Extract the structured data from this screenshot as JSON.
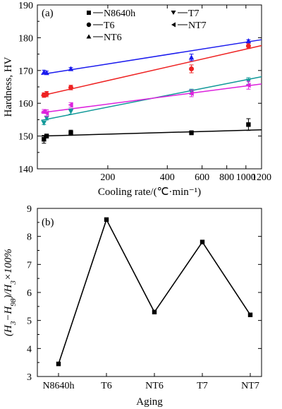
{
  "chart_data": [
    {
      "panel": "(a)",
      "type": "scatter",
      "xlabel": "Cooling rate/(℃·min⁻¹)",
      "ylabel": "Hardness, HV",
      "xscale": "log",
      "xlim": [
        88,
        1200
      ],
      "ylim": [
        140,
        190
      ],
      "xticks": [
        200,
        400,
        600,
        800,
        1000,
        1200
      ],
      "xtick_labels": [
        "200",
        "400",
        "600",
        "800",
        "1000",
        "1200"
      ],
      "yticks": [
        140,
        150,
        160,
        170,
        180,
        190
      ],
      "ytick_labels": [
        "140",
        "150",
        "160",
        "170",
        "180",
        "190"
      ],
      "legend": "top",
      "series": [
        {
          "name": "N8640h",
          "marker": "square",
          "color": "#000000",
          "x": [
            95,
            98,
            130,
            530,
            1030
          ],
          "y": [
            149.0,
            150.0,
            151.0,
            151.0,
            153.5
          ],
          "err": [
            1.2,
            0.6,
            0.8,
            0.6,
            1.8
          ],
          "fit": [
            150.0,
            151.9
          ]
        },
        {
          "name": "T6",
          "marker": "circle",
          "color": "#ee2222",
          "x": [
            95,
            98,
            130,
            530,
            1030
          ],
          "y": [
            162.5,
            162.8,
            164.8,
            170.5,
            177.5
          ],
          "err": [
            0.7,
            0.8,
            0.7,
            1.2,
            0.8
          ],
          "fit": [
            162.3,
            177.6
          ]
        },
        {
          "name": "NT6",
          "marker": "triangle-up",
          "color": "#1a1aee",
          "x": [
            95,
            98,
            130,
            530,
            1030
          ],
          "y": [
            169.5,
            169.3,
            170.5,
            174.0,
            179.0
          ],
          "err": [
            0.6,
            0.5,
            0.4,
            1.0,
            0.4
          ],
          "fit": [
            168.8,
            179.4
          ]
        },
        {
          "name": "T7",
          "marker": "triangle-down",
          "color": "#119999",
          "x": [
            95,
            98,
            130,
            530,
            1030
          ],
          "y": [
            154.0,
            155.5,
            157.5,
            163.5,
            166.8
          ],
          "err": [
            0.5,
            0.6,
            0.8,
            0.8,
            1.0
          ],
          "fit": [
            154.8,
            168.1
          ]
        },
        {
          "name": "NT7",
          "marker": "triangle-left",
          "color": "#dd22dd",
          "x": [
            95,
            98,
            130,
            530,
            1030
          ],
          "y": [
            157.5,
            157.0,
            159.5,
            163.0,
            165.5
          ],
          "err": [
            0.6,
            1.0,
            0.7,
            1.0,
            1.2
          ],
          "fit": [
            157.1,
            165.9
          ]
        }
      ]
    },
    {
      "panel": "(b)",
      "type": "line",
      "xlabel": "Aging",
      "ylabel": "(H3−H98)/H3×100%",
      "categories": [
        "N8640h",
        "T6",
        "NT6",
        "T7",
        "NT7"
      ],
      "values": [
        3.45,
        8.6,
        5.3,
        7.8,
        5.2
      ],
      "ylim": [
        3,
        9
      ],
      "yticks": [
        3,
        4,
        5,
        6,
        7,
        8,
        9
      ],
      "ytick_labels": [
        "3",
        "4",
        "5",
        "6",
        "7",
        "8",
        "9"
      ],
      "marker": "square",
      "color": "#000000"
    }
  ]
}
